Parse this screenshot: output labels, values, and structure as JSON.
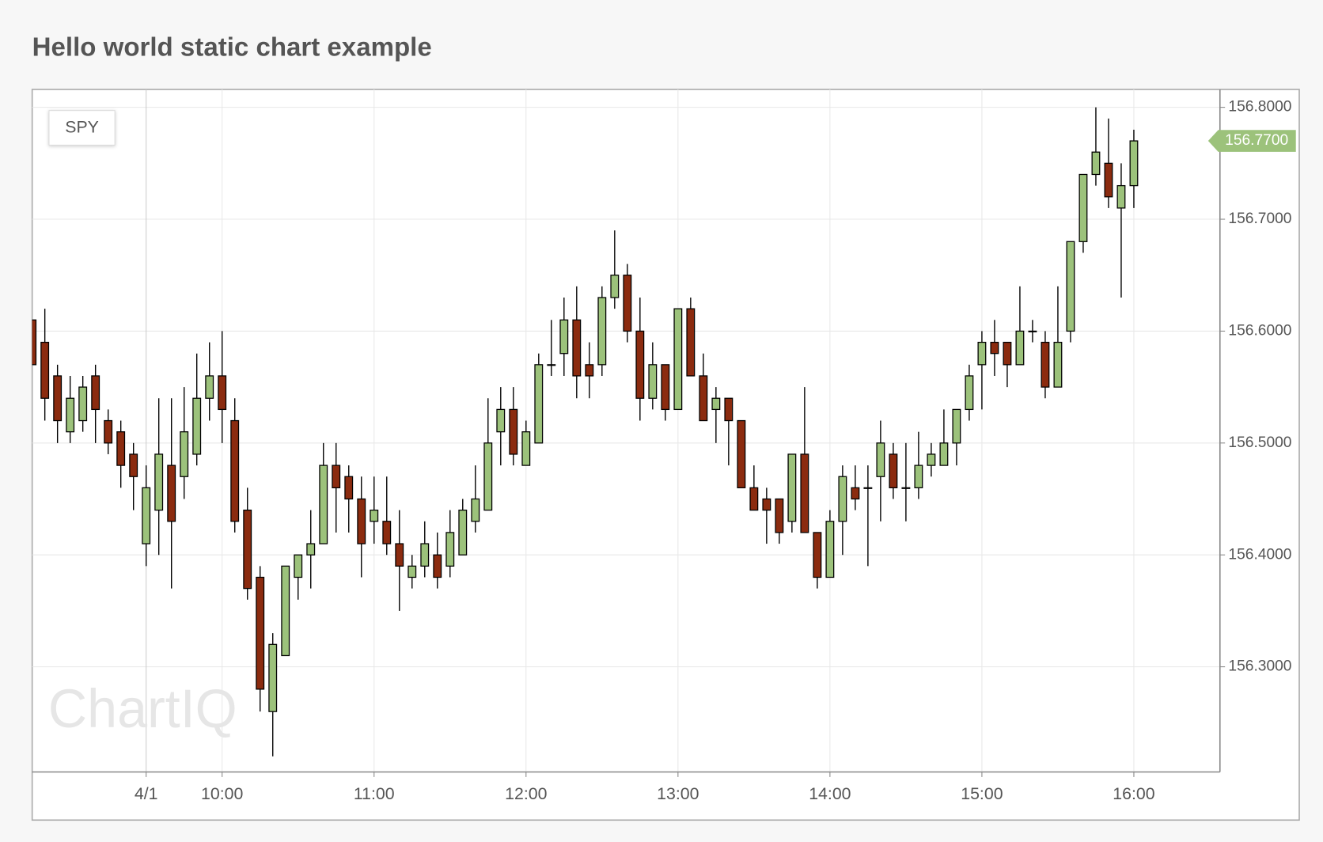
{
  "chart_data": {
    "type": "candlestick",
    "title": "Hello world static chart example",
    "symbol": "SPY",
    "watermark": "ChartIQ",
    "x": [
      "08:45",
      "08:50",
      "08:55",
      "09:00",
      "09:05",
      "09:10",
      "09:15",
      "09:20",
      "09:25",
      "09:30",
      "09:35",
      "09:40",
      "09:45",
      "09:50",
      "09:55",
      "10:00",
      "10:05",
      "10:10",
      "10:15",
      "10:20",
      "10:25",
      "10:30",
      "10:35",
      "10:40",
      "10:45",
      "10:50",
      "10:55",
      "11:00",
      "11:05",
      "11:10",
      "11:15",
      "11:20",
      "11:25",
      "11:30",
      "11:35",
      "11:40",
      "11:45",
      "11:50",
      "11:55",
      "12:00",
      "12:05",
      "12:10",
      "12:15",
      "12:20",
      "12:25",
      "12:30",
      "12:35",
      "12:40",
      "12:45",
      "12:50",
      "12:55",
      "13:00",
      "13:05",
      "13:10",
      "13:15",
      "13:20",
      "13:25",
      "13:30",
      "13:35",
      "13:40",
      "13:45",
      "13:50",
      "13:55",
      "14:00",
      "14:05",
      "14:10",
      "14:15",
      "14:20",
      "14:25",
      "14:30",
      "14:35",
      "14:40",
      "14:45",
      "14:50",
      "14:55",
      "15:00",
      "15:05",
      "15:10",
      "15:15",
      "15:20",
      "15:25",
      "15:30",
      "15:35",
      "15:40",
      "15:45",
      "15:50",
      "15:55",
      "16:00"
    ],
    "open": [
      156.61,
      156.59,
      156.56,
      156.51,
      156.52,
      156.56,
      156.52,
      156.51,
      156.49,
      156.41,
      156.44,
      156.48,
      156.47,
      156.49,
      156.54,
      156.56,
      156.52,
      156.44,
      156.38,
      156.26,
      156.31,
      156.38,
      156.4,
      156.41,
      156.48,
      156.47,
      156.45,
      156.43,
      156.43,
      156.41,
      156.38,
      156.39,
      156.4,
      156.39,
      156.4,
      156.43,
      156.44,
      156.51,
      156.53,
      156.48,
      156.5,
      156.57,
      156.58,
      156.61,
      156.57,
      156.57,
      156.63,
      156.65,
      156.6,
      156.54,
      156.57,
      156.53,
      156.62,
      156.56,
      156.53,
      156.54,
      156.52,
      156.46,
      156.45,
      156.45,
      156.43,
      156.49,
      156.42,
      156.38,
      156.43,
      156.46,
      156.46,
      156.47,
      156.49,
      156.46,
      156.46,
      156.48,
      156.48,
      156.5,
      156.53,
      156.57,
      156.59,
      156.59,
      156.57,
      156.6,
      156.59,
      156.55,
      156.6,
      156.68,
      156.74,
      156.75,
      156.71,
      156.73
    ],
    "high": [
      156.61,
      156.62,
      156.57,
      156.56,
      156.56,
      156.57,
      156.53,
      156.52,
      156.5,
      156.48,
      156.54,
      156.54,
      156.55,
      156.58,
      156.59,
      156.6,
      156.54,
      156.46,
      156.39,
      156.33,
      156.39,
      156.4,
      156.44,
      156.5,
      156.5,
      156.48,
      156.47,
      156.47,
      156.47,
      156.44,
      156.4,
      156.43,
      156.42,
      156.44,
      156.45,
      156.48,
      156.54,
      156.55,
      156.55,
      156.52,
      156.58,
      156.61,
      156.63,
      156.64,
      156.59,
      156.64,
      156.69,
      156.66,
      156.63,
      156.59,
      156.57,
      156.62,
      156.63,
      156.58,
      156.55,
      156.54,
      156.52,
      156.48,
      156.46,
      156.45,
      156.49,
      156.55,
      156.42,
      156.44,
      156.48,
      156.48,
      156.48,
      156.52,
      156.5,
      156.5,
      156.51,
      156.5,
      156.53,
      156.53,
      156.57,
      156.6,
      156.61,
      156.59,
      156.64,
      156.61,
      156.6,
      156.64,
      156.68,
      156.74,
      156.8,
      156.79,
      156.75,
      156.78
    ],
    "low": [
      156.57,
      156.52,
      156.5,
      156.5,
      156.51,
      156.5,
      156.49,
      156.46,
      156.44,
      156.39,
      156.4,
      156.37,
      156.45,
      156.48,
      156.52,
      156.5,
      156.42,
      156.36,
      156.26,
      156.22,
      156.31,
      156.36,
      156.37,
      156.41,
      156.42,
      156.42,
      156.38,
      156.41,
      156.4,
      156.35,
      156.37,
      156.38,
      156.37,
      156.38,
      156.4,
      156.42,
      156.44,
      156.48,
      156.48,
      156.48,
      156.5,
      156.56,
      156.56,
      156.54,
      156.54,
      156.56,
      156.62,
      156.59,
      156.52,
      156.53,
      156.52,
      156.53,
      156.56,
      156.52,
      156.5,
      156.48,
      156.46,
      156.44,
      156.41,
      156.41,
      156.42,
      156.42,
      156.37,
      156.38,
      156.4,
      156.44,
      156.39,
      156.43,
      156.45,
      156.43,
      156.45,
      156.47,
      156.48,
      156.48,
      156.52,
      156.53,
      156.56,
      156.55,
      156.57,
      156.59,
      156.54,
      156.55,
      156.59,
      156.67,
      156.73,
      156.71,
      156.63,
      156.71
    ],
    "close": [
      156.57,
      156.54,
      156.52,
      156.54,
      156.55,
      156.53,
      156.5,
      156.48,
      156.47,
      156.46,
      156.49,
      156.43,
      156.51,
      156.54,
      156.56,
      156.53,
      156.43,
      156.37,
      156.28,
      156.32,
      156.39,
      156.4,
      156.41,
      156.48,
      156.46,
      156.45,
      156.41,
      156.44,
      156.41,
      156.39,
      156.39,
      156.41,
      156.38,
      156.42,
      156.44,
      156.45,
      156.5,
      156.53,
      156.49,
      156.51,
      156.57,
      156.57,
      156.61,
      156.56,
      156.56,
      156.63,
      156.65,
      156.6,
      156.54,
      156.57,
      156.53,
      156.62,
      156.56,
      156.52,
      156.54,
      156.52,
      156.46,
      156.44,
      156.44,
      156.42,
      156.49,
      156.42,
      156.38,
      156.43,
      156.47,
      156.45,
      156.46,
      156.5,
      156.46,
      156.46,
      156.48,
      156.49,
      156.5,
      156.53,
      156.56,
      156.59,
      156.58,
      156.57,
      156.6,
      156.6,
      156.55,
      156.59,
      156.68,
      156.74,
      156.76,
      156.72,
      156.73,
      156.77
    ],
    "up_color": "#9cc27b",
    "down_color": "#8b2b0f",
    "current_price": {
      "value": 156.77,
      "label": "156.7700"
    },
    "xlim": [
      "08:45",
      "16:34"
    ],
    "xticks": [
      {
        "value": "09:30",
        "label": "4/1"
      },
      "10:00",
      "11:00",
      "12:00",
      "13:00",
      "14:00",
      "15:00",
      "16:00"
    ],
    "ylim": [
      156.206,
      156.816
    ],
    "yticks": [
      {
        "value": 156.3,
        "label": "156.3000"
      },
      {
        "value": 156.4,
        "label": "156.4000"
      },
      {
        "value": 156.5,
        "label": "156.5000"
      },
      {
        "value": 156.6,
        "label": "156.6000"
      },
      {
        "value": 156.7,
        "label": "156.7000"
      },
      {
        "value": 156.8,
        "label": "156.8000"
      }
    ],
    "grid": true
  }
}
